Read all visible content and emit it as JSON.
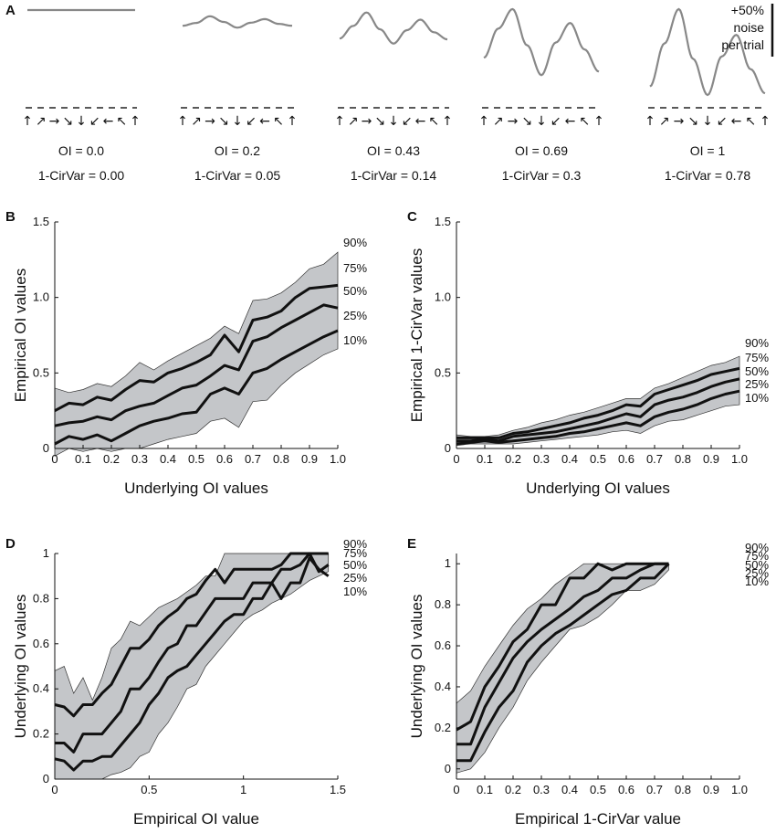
{
  "panels": {
    "a": "A",
    "b": "B",
    "c": "C",
    "d": "D",
    "e": "E"
  },
  "panel_a": {
    "direction_glyphs": [
      "↑",
      "↗",
      "→",
      "↘",
      "↓",
      "↙",
      "←",
      "↖",
      "↑"
    ],
    "scale_bar_lines": [
      "+50%",
      "noise",
      "per trial"
    ],
    "curves": [
      {
        "oi_label": "OI = 0.0",
        "cv_label": "1-CirVar = 0.00",
        "values": [
          1,
          1,
          1,
          1,
          1,
          1,
          1,
          1,
          1
        ]
      },
      {
        "oi_label": "OI = 0.2",
        "cv_label": "1-CirVar = 0.05",
        "values": [
          0.3,
          0.42,
          0.7,
          0.46,
          0.22,
          0.43,
          0.58,
          0.38,
          0.3
        ]
      },
      {
        "oi_label": "OI = 0.43",
        "cv_label": "1-CirVar = 0.14",
        "values": [
          0.3,
          0.6,
          0.92,
          0.52,
          0.18,
          0.5,
          0.75,
          0.45,
          0.28
        ]
      },
      {
        "oi_label": "OI = 0.69",
        "cv_label": "1-CirVar = 0.3",
        "values": [
          0.3,
          0.72,
          1.0,
          0.48,
          0.05,
          0.52,
          0.8,
          0.42,
          0.1
        ]
      },
      {
        "oi_label": "OI = 1",
        "cv_label": "1-CirVar = 0.78",
        "values": [
          0.1,
          0.6,
          1.0,
          0.42,
          0.0,
          0.45,
          0.7,
          0.3,
          0.02
        ]
      }
    ]
  },
  "chart_data": [
    {
      "id": "B",
      "type": "area",
      "xlabel": "Underlying OI values",
      "ylabel": "Empirical OI values",
      "xlim": [
        0,
        1
      ],
      "ylim": [
        0,
        1.5
      ],
      "xticks": [
        0,
        0.1,
        0.2,
        0.3,
        0.4,
        0.5,
        0.6,
        0.7,
        0.8,
        0.9,
        1.0
      ],
      "xticklabels": [
        "0",
        "0.1",
        "0.2",
        "0.3",
        "0.4",
        "0.5",
        "0.6",
        "0.7",
        "0.8",
        "0.9",
        "1.0"
      ],
      "yticks": [
        0,
        0.5,
        1,
        1.5
      ],
      "yticklabels": [
        "0",
        "0.5",
        "1.0",
        "1.5"
      ],
      "x": [
        0,
        0.05,
        0.1,
        0.15,
        0.2,
        0.25,
        0.3,
        0.35,
        0.4,
        0.45,
        0.5,
        0.55,
        0.6,
        0.65,
        0.7,
        0.75,
        0.8,
        0.85,
        0.9,
        0.95,
        1.0
      ],
      "series": [
        {
          "name": "90%",
          "values": [
            0.4,
            0.37,
            0.39,
            0.43,
            0.41,
            0.48,
            0.57,
            0.52,
            0.58,
            0.63,
            0.68,
            0.73,
            0.81,
            0.76,
            0.98,
            0.99,
            1.03,
            1.1,
            1.19,
            1.22,
            1.3
          ]
        },
        {
          "name": "75%",
          "values": [
            0.25,
            0.3,
            0.29,
            0.34,
            0.32,
            0.39,
            0.45,
            0.44,
            0.5,
            0.53,
            0.57,
            0.62,
            0.75,
            0.64,
            0.85,
            0.87,
            0.91,
            1.0,
            1.06,
            1.07,
            1.08
          ]
        },
        {
          "name": "50%",
          "values": [
            0.15,
            0.17,
            0.18,
            0.21,
            0.19,
            0.25,
            0.28,
            0.3,
            0.35,
            0.4,
            0.42,
            0.48,
            0.55,
            0.52,
            0.71,
            0.74,
            0.8,
            0.85,
            0.9,
            0.95,
            0.93
          ]
        },
        {
          "name": "25%",
          "values": [
            0.03,
            0.08,
            0.06,
            0.09,
            0.05,
            0.1,
            0.15,
            0.18,
            0.2,
            0.23,
            0.24,
            0.36,
            0.4,
            0.36,
            0.5,
            0.53,
            0.59,
            0.64,
            0.69,
            0.74,
            0.78
          ]
        },
        {
          "name": "10%",
          "values": [
            -0.05,
            0.0,
            -0.02,
            0.0,
            -0.02,
            0.0,
            0.0,
            0.03,
            0.06,
            0.08,
            0.1,
            0.18,
            0.2,
            0.14,
            0.31,
            0.32,
            0.42,
            0.5,
            0.56,
            0.62,
            0.66
          ]
        }
      ],
      "label_series": [
        "90%",
        "75%",
        "50%",
        "25%",
        "10%"
      ]
    },
    {
      "id": "C",
      "type": "area",
      "xlabel": "Underlying OI values",
      "ylabel": "Empirical 1-CirVar values",
      "xlim": [
        0,
        1
      ],
      "ylim": [
        0,
        1.5
      ],
      "xticks": [
        0,
        0.1,
        0.2,
        0.3,
        0.4,
        0.5,
        0.6,
        0.7,
        0.8,
        0.9,
        1.0
      ],
      "xticklabels": [
        "0",
        "0.1",
        "0.2",
        "0.3",
        "0.4",
        "0.5",
        "0.6",
        "0.7",
        "0.8",
        "0.9",
        "1.0"
      ],
      "yticks": [
        0,
        0.5,
        1,
        1.5
      ],
      "yticklabels": [
        "0",
        "0.5",
        "1.0",
        "1.5"
      ],
      "x": [
        0,
        0.05,
        0.1,
        0.15,
        0.2,
        0.25,
        0.3,
        0.35,
        0.4,
        0.45,
        0.5,
        0.55,
        0.6,
        0.65,
        0.7,
        0.75,
        0.8,
        0.85,
        0.9,
        0.95,
        1.0
      ],
      "series": [
        {
          "name": "90%",
          "values": [
            0.09,
            0.08,
            0.08,
            0.09,
            0.12,
            0.14,
            0.17,
            0.19,
            0.22,
            0.24,
            0.27,
            0.3,
            0.33,
            0.33,
            0.4,
            0.43,
            0.47,
            0.51,
            0.55,
            0.57,
            0.61
          ]
        },
        {
          "name": "75%",
          "values": [
            0.07,
            0.07,
            0.07,
            0.07,
            0.1,
            0.11,
            0.13,
            0.15,
            0.17,
            0.2,
            0.22,
            0.25,
            0.29,
            0.28,
            0.36,
            0.39,
            0.42,
            0.45,
            0.49,
            0.51,
            0.53
          ]
        },
        {
          "name": "50%",
          "values": [
            0.05,
            0.05,
            0.06,
            0.05,
            0.08,
            0.09,
            0.1,
            0.11,
            0.13,
            0.15,
            0.17,
            0.2,
            0.23,
            0.21,
            0.29,
            0.32,
            0.34,
            0.37,
            0.41,
            0.44,
            0.46
          ]
        },
        {
          "name": "25%",
          "values": [
            0.03,
            0.04,
            0.05,
            0.04,
            0.05,
            0.06,
            0.07,
            0.08,
            0.1,
            0.11,
            0.13,
            0.15,
            0.17,
            0.15,
            0.21,
            0.24,
            0.26,
            0.29,
            0.33,
            0.36,
            0.38
          ]
        },
        {
          "name": "10%",
          "values": [
            0.02,
            0.03,
            0.03,
            0.03,
            0.03,
            0.04,
            0.05,
            0.06,
            0.07,
            0.08,
            0.09,
            0.11,
            0.12,
            0.1,
            0.15,
            0.18,
            0.19,
            0.22,
            0.25,
            0.28,
            0.29
          ]
        }
      ],
      "label_series": [
        "90%",
        "75%",
        "50%",
        "25%",
        "10%"
      ]
    },
    {
      "id": "D",
      "type": "area",
      "xlabel": "Empirical OI value",
      "ylabel": "Underlying OI values",
      "xlim": [
        0,
        1.5
      ],
      "ylim": [
        0,
        1
      ],
      "xticks": [
        0,
        0.5,
        1,
        1.5
      ],
      "xticklabels": [
        "0",
        "0.5",
        "1",
        "1.5"
      ],
      "yticks": [
        0,
        0.2,
        0.4,
        0.6,
        0.8,
        1
      ],
      "yticklabels": [
        "0",
        "0.2",
        "0.4",
        "0.6",
        "0.8",
        "1"
      ],
      "x": [
        0,
        0.05,
        0.1,
        0.15,
        0.2,
        0.25,
        0.3,
        0.35,
        0.4,
        0.45,
        0.5,
        0.55,
        0.6,
        0.65,
        0.7,
        0.75,
        0.8,
        0.85,
        0.9,
        0.95,
        1.0,
        1.05,
        1.1,
        1.15,
        1.2,
        1.25,
        1.3,
        1.35,
        1.4,
        1.45
      ],
      "series": [
        {
          "name": "90%",
          "values": [
            0.48,
            0.5,
            0.38,
            0.45,
            0.35,
            0.45,
            0.58,
            0.62,
            0.7,
            0.68,
            0.72,
            0.76,
            0.78,
            0.8,
            0.83,
            0.86,
            0.9,
            0.9,
            1.0,
            1.0,
            1.0,
            1.0,
            1.0,
            1.0,
            1.0,
            1.0,
            1.0,
            1.0,
            1.0,
            1.0
          ]
        },
        {
          "name": "75%",
          "values": [
            0.33,
            0.32,
            0.28,
            0.33,
            0.33,
            0.38,
            0.42,
            0.5,
            0.58,
            0.58,
            0.62,
            0.68,
            0.72,
            0.75,
            0.8,
            0.82,
            0.88,
            0.93,
            0.87,
            0.93,
            0.93,
            0.93,
            0.93,
            0.93,
            0.95,
            1.0,
            1.0,
            1.0,
            1.0,
            1.0
          ]
        },
        {
          "name": "50%",
          "values": [
            0.16,
            0.16,
            0.12,
            0.2,
            0.2,
            0.2,
            0.25,
            0.3,
            0.4,
            0.4,
            0.45,
            0.52,
            0.58,
            0.6,
            0.68,
            0.68,
            0.74,
            0.8,
            0.8,
            0.8,
            0.8,
            0.87,
            0.87,
            0.87,
            0.93,
            0.93,
            0.95,
            1.0,
            0.92,
            0.95
          ]
        },
        {
          "name": "25%",
          "values": [
            0.09,
            0.08,
            0.04,
            0.08,
            0.08,
            0.1,
            0.1,
            0.15,
            0.2,
            0.25,
            0.33,
            0.38,
            0.45,
            0.48,
            0.5,
            0.55,
            0.6,
            0.65,
            0.7,
            0.73,
            0.73,
            0.8,
            0.8,
            0.87,
            0.8,
            0.87,
            0.87,
            0.98,
            0.93,
            0.9
          ]
        },
        {
          "name": "10%",
          "values": [
            0.0,
            0.0,
            0.0,
            0.0,
            0.0,
            0.0,
            0.02,
            0.03,
            0.05,
            0.1,
            0.12,
            0.2,
            0.25,
            0.32,
            0.4,
            0.42,
            0.5,
            0.55,
            0.6,
            0.65,
            0.7,
            0.73,
            0.75,
            0.78,
            0.8,
            0.82,
            0.85,
            0.88,
            0.9,
            0.92
          ]
        }
      ],
      "label_series": [
        "90%",
        "75%",
        "50%",
        "25%",
        "10%"
      ]
    },
    {
      "id": "E",
      "type": "area",
      "xlabel": "Empirical 1-CirVar value",
      "ylabel": "Underlying OI values",
      "xlim": [
        0,
        1
      ],
      "ylim": [
        -0.05,
        1.05
      ],
      "xticks": [
        0,
        0.1,
        0.2,
        0.3,
        0.4,
        0.5,
        0.6,
        0.7,
        0.8,
        0.9,
        1.0
      ],
      "xticklabels": [
        "0",
        "0.1",
        "0.2",
        "0.3",
        "0.4",
        "0.5",
        "0.6",
        "0.7",
        "0.8",
        "0.9",
        "1.0"
      ],
      "yticks": [
        0,
        0.2,
        0.4,
        0.6,
        0.8,
        1
      ],
      "yticklabels": [
        "0",
        "0.2",
        "0.4",
        "0.6",
        "0.8",
        "1"
      ],
      "x": [
        0,
        0.05,
        0.1,
        0.15,
        0.2,
        0.25,
        0.3,
        0.35,
        0.4,
        0.45,
        0.5,
        0.55,
        0.6,
        0.65,
        0.7,
        0.75
      ],
      "series": [
        {
          "name": "90%",
          "values": [
            0.32,
            0.38,
            0.5,
            0.6,
            0.7,
            0.78,
            0.83,
            0.9,
            0.95,
            1.0,
            1.0,
            1.0,
            1.0,
            1.0,
            1.0,
            1.0
          ]
        },
        {
          "name": "75%",
          "values": [
            0.19,
            0.23,
            0.4,
            0.5,
            0.62,
            0.68,
            0.8,
            0.8,
            0.93,
            0.93,
            1.0,
            0.97,
            1.0,
            1.0,
            1.0,
            1.0
          ]
        },
        {
          "name": "50%",
          "values": [
            0.12,
            0.12,
            0.3,
            0.42,
            0.54,
            0.62,
            0.68,
            0.73,
            0.78,
            0.84,
            0.87,
            0.93,
            0.93,
            0.97,
            1.0,
            1.0
          ]
        },
        {
          "name": "25%",
          "values": [
            0.04,
            0.04,
            0.18,
            0.3,
            0.38,
            0.52,
            0.6,
            0.66,
            0.7,
            0.75,
            0.8,
            0.85,
            0.87,
            0.93,
            0.93,
            1.0
          ]
        },
        {
          "name": "10%",
          "values": [
            -0.02,
            0.0,
            0.08,
            0.2,
            0.3,
            0.43,
            0.52,
            0.6,
            0.68,
            0.7,
            0.74,
            0.8,
            0.87,
            0.87,
            0.9,
            0.97
          ]
        }
      ],
      "label_series": [
        "90%",
        "75%",
        "50%",
        "25%",
        "10%"
      ]
    }
  ],
  "colors": {
    "band": "#c4c6c9",
    "line": "#111111",
    "curve": "#888888"
  }
}
